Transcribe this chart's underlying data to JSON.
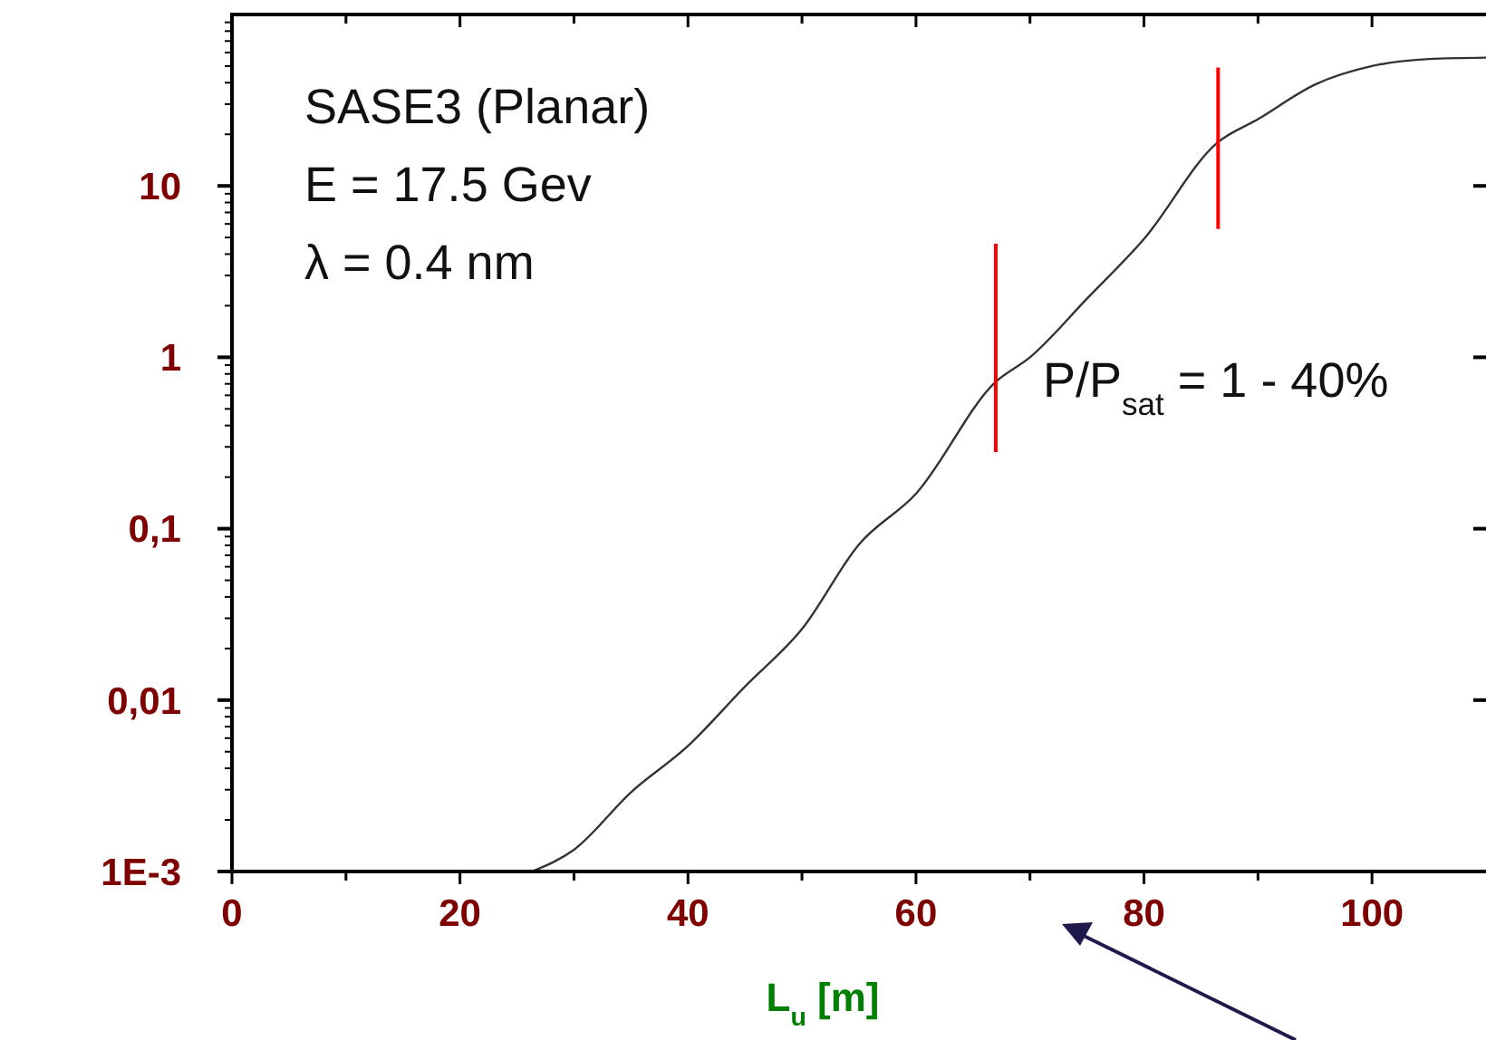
{
  "chart_data": {
    "type": "line",
    "xlabel": "L$_{u}$  [m]",
    "xlim": [
      0,
      110
    ],
    "ylim": [
      0.001,
      100
    ],
    "log": "y",
    "grid": false,
    "marker": "none",
    "line_style": "solid",
    "xticks": [
      0,
      {
        "value": 10,
        "label": null
      },
      20,
      {
        "value": 30,
        "label": null
      },
      40,
      {
        "value": 50,
        "label": null
      },
      60,
      {
        "value": 70,
        "label": null
      },
      80,
      {
        "value": 90,
        "label": null
      },
      100
    ],
    "yticks": [
      {
        "value": 0.001,
        "label": "1E-3"
      },
      {
        "value": 0.01,
        "label": "0,01"
      },
      {
        "value": 0.1,
        "label": "0,1"
      },
      1,
      10
    ],
    "series": [
      {
        "color": "#333333",
        "x": [
          26.3,
          30,
          35,
          40,
          45,
          50,
          55,
          60,
          67,
          70,
          75,
          80,
          86.4,
          90,
          95,
          100,
          105,
          110
        ],
        "values": [
          0.001,
          0.00134,
          0.0029,
          0.0054,
          0.012,
          0.026,
          0.081,
          0.16,
          0.72,
          1.0,
          2.2,
          4.9,
          17.8,
          24.5,
          39,
          50,
          55,
          56
        ]
      },
      {
        "color": "#ff0000",
        "x": [
          67,
          67
        ],
        "values": [
          0.28,
          4.6
        ]
      },
      {
        "color": "#ff0000",
        "x": [
          86.5,
          86.5
        ],
        "values": [
          5.6,
          49
        ]
      }
    ],
    "annotations": [
      "SASE3 (Planar)",
      "E = 17.5 Gev",
      "λ = 0.4 nm",
      {
        "text": "P/P$_{sat}$ = 1 - 40%",
        "x": 67,
        "y": 0.72
      }
    ]
  }
}
